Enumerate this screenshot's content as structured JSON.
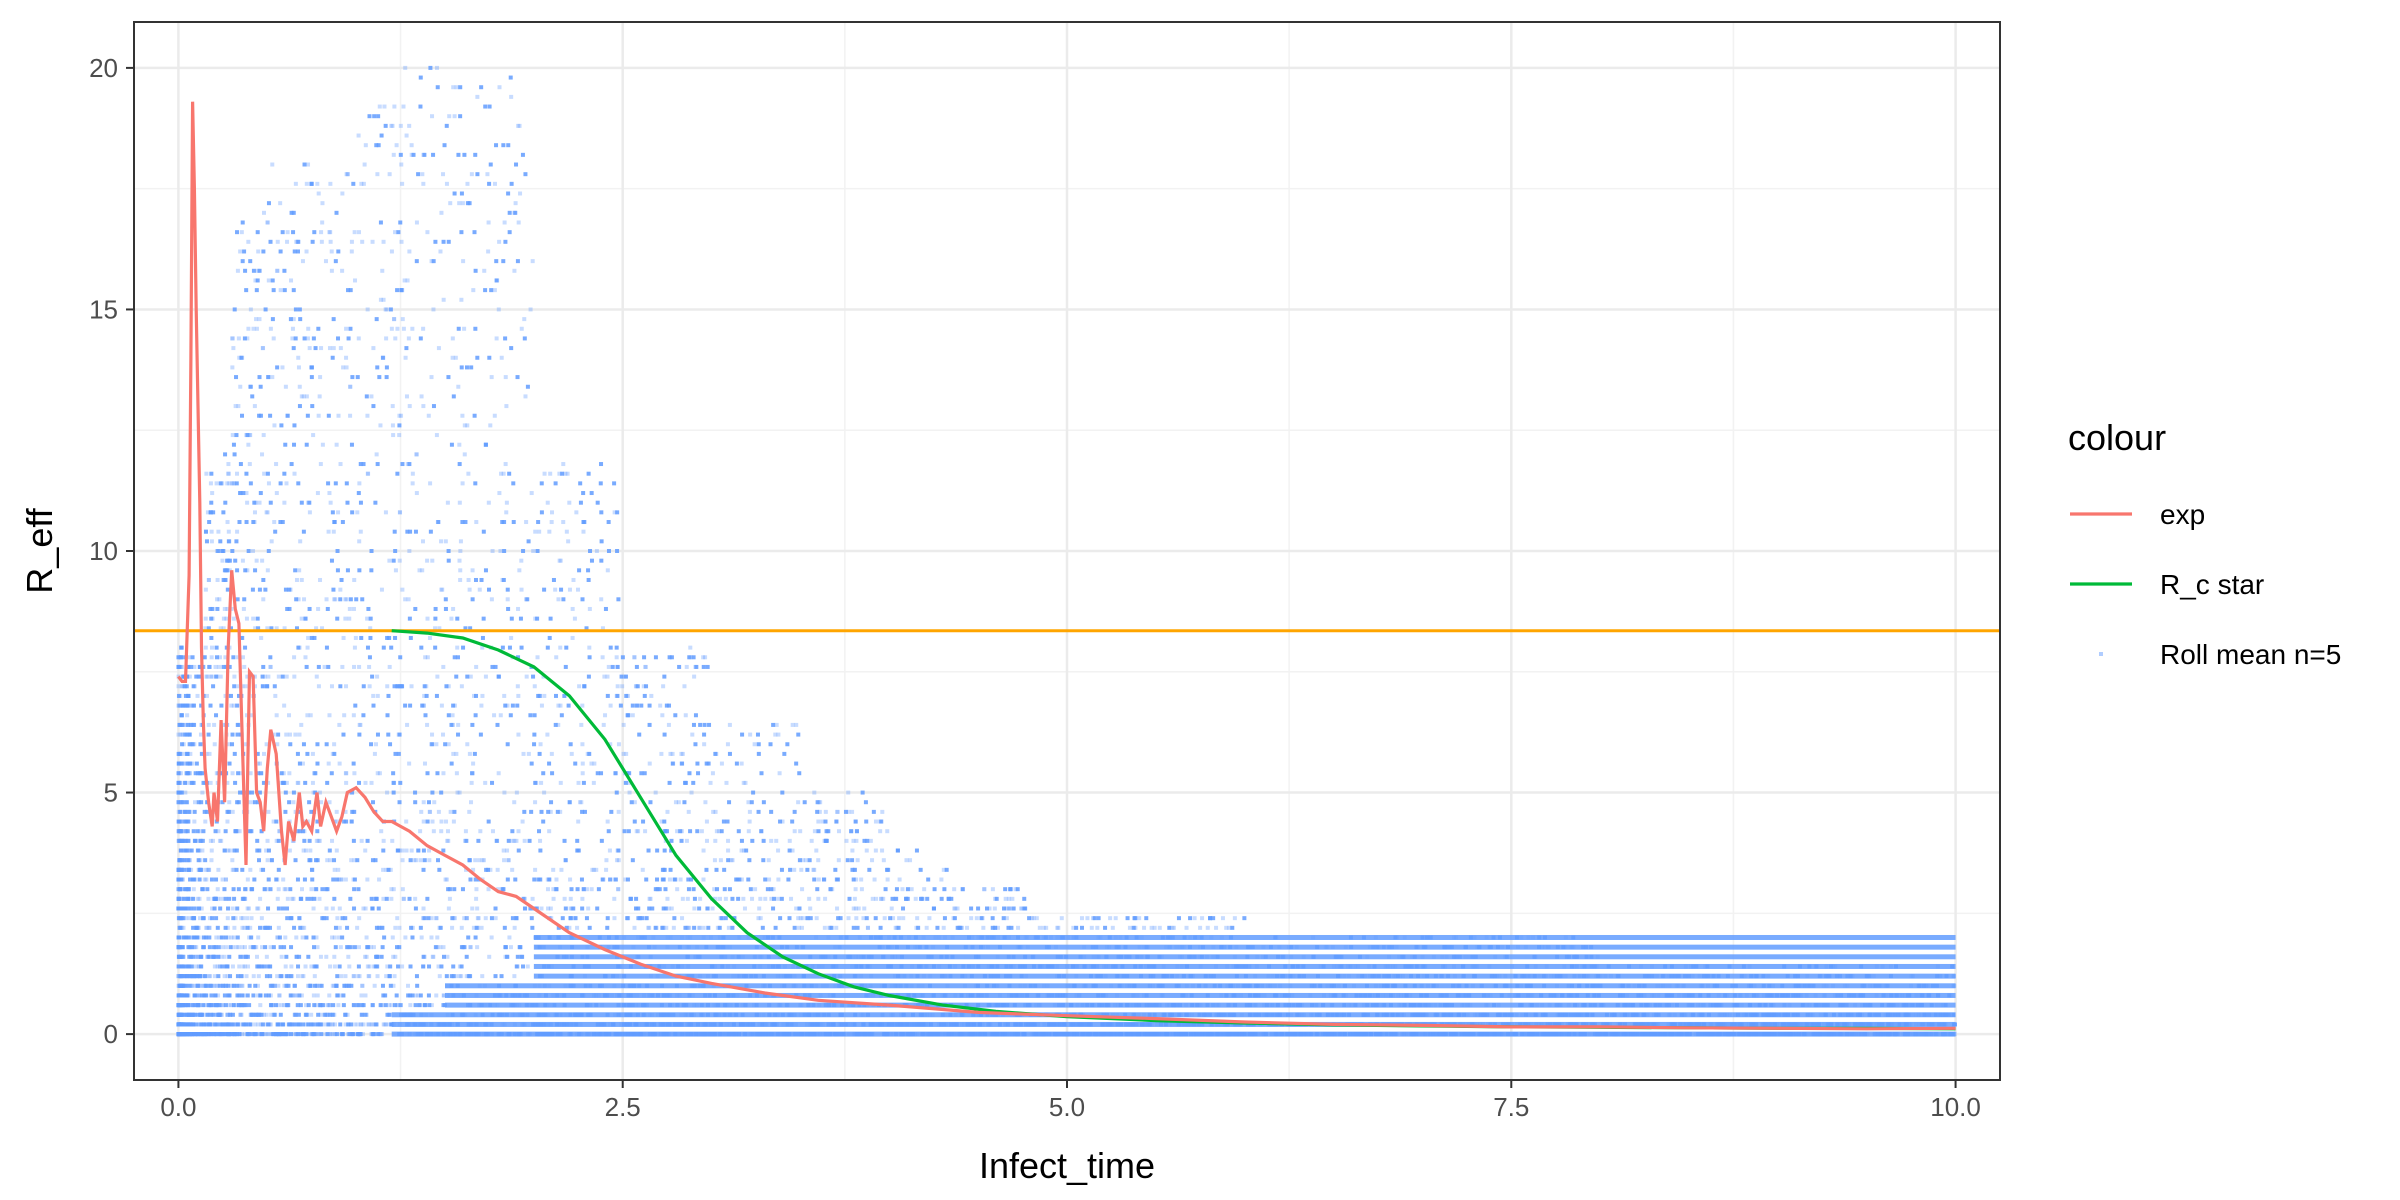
{
  "chart_data": {
    "type": "scatter",
    "title": "",
    "xlabel": "Infect_time",
    "ylabel": "R_eff",
    "xlim": [
      -0.25,
      10.25
    ],
    "ylim": [
      -0.95,
      20.95
    ],
    "x_ticks": [
      0.0,
      2.5,
      5.0,
      7.5,
      10.0
    ],
    "x_tick_labels": [
      "0.0",
      "2.5",
      "5.0",
      "7.5",
      "10.0"
    ],
    "y_ticks": [
      0,
      5,
      10,
      15,
      20
    ],
    "y_tick_labels": [
      "0",
      "5",
      "10",
      "15",
      "20"
    ],
    "grid": true,
    "theme": "bw",
    "hline": {
      "y": 8.35,
      "color": "#FFA500"
    },
    "legend": {
      "title": "colour",
      "position": "right",
      "entries": [
        {
          "label": "exp",
          "color": "#F8766D",
          "kind": "line"
        },
        {
          "label": "R_c star",
          "color": "#00BA38",
          "kind": "line"
        },
        {
          "label": "Roll mean n=5",
          "color": "#619CFF",
          "kind": "point"
        }
      ]
    },
    "series": [
      {
        "name": "exp",
        "kind": "line",
        "color": "#F8766D",
        "x": [
          0.0,
          0.02,
          0.04,
          0.06,
          0.07,
          0.08,
          0.09,
          0.1,
          0.11,
          0.12,
          0.13,
          0.14,
          0.15,
          0.17,
          0.19,
          0.2,
          0.22,
          0.24,
          0.26,
          0.28,
          0.3,
          0.32,
          0.34,
          0.36,
          0.38,
          0.4,
          0.42,
          0.44,
          0.46,
          0.48,
          0.5,
          0.52,
          0.55,
          0.58,
          0.6,
          0.62,
          0.65,
          0.68,
          0.7,
          0.72,
          0.75,
          0.78,
          0.8,
          0.83,
          0.86,
          0.89,
          0.92,
          0.95,
          1.0,
          1.05,
          1.1,
          1.15,
          1.2,
          1.25,
          1.3,
          1.4,
          1.5,
          1.6,
          1.7,
          1.8,
          1.9,
          2.0,
          2.2,
          2.4,
          2.6,
          2.8,
          3.0,
          3.3,
          3.6,
          4.0,
          4.5,
          5.0,
          5.5,
          6.0,
          6.5,
          7.0,
          7.5,
          8.0,
          8.5,
          9.0,
          9.5,
          10.0
        ],
        "y": [
          7.4,
          7.3,
          7.3,
          9.5,
          14.0,
          19.3,
          17.5,
          15.0,
          13.0,
          11.0,
          8.0,
          6.5,
          5.5,
          4.8,
          4.3,
          5.0,
          4.4,
          6.5,
          4.8,
          8.0,
          9.6,
          8.8,
          8.5,
          6.0,
          3.5,
          7.5,
          7.4,
          5.0,
          4.8,
          4.2,
          5.5,
          6.3,
          5.8,
          4.2,
          3.5,
          4.4,
          4.0,
          5.0,
          4.3,
          4.4,
          4.2,
          5.0,
          4.3,
          4.8,
          4.5,
          4.2,
          4.5,
          5.0,
          5.1,
          4.9,
          4.6,
          4.4,
          4.4,
          4.3,
          4.2,
          3.9,
          3.7,
          3.5,
          3.2,
          2.95,
          2.85,
          2.6,
          2.1,
          1.75,
          1.45,
          1.2,
          1.05,
          0.85,
          0.7,
          0.6,
          0.45,
          0.38,
          0.32,
          0.25,
          0.2,
          0.18,
          0.15,
          0.15,
          0.13,
          0.12,
          0.11,
          0.12
        ]
      },
      {
        "name": "R_c star",
        "kind": "line",
        "color": "#00BA38",
        "x": [
          1.2,
          1.4,
          1.6,
          1.8,
          2.0,
          2.2,
          2.4,
          2.6,
          2.8,
          3.0,
          3.2,
          3.4,
          3.6,
          3.8,
          4.0,
          4.3,
          4.6,
          5.0,
          5.5,
          6.0,
          6.5,
          7.0,
          7.5,
          8.0,
          8.5,
          9.0,
          9.5,
          10.0
        ],
        "y": [
          8.35,
          8.3,
          8.2,
          7.95,
          7.6,
          7.0,
          6.1,
          4.9,
          3.7,
          2.8,
          2.1,
          1.6,
          1.25,
          0.98,
          0.8,
          0.6,
          0.47,
          0.36,
          0.28,
          0.23,
          0.19,
          0.17,
          0.15,
          0.14,
          0.13,
          0.12,
          0.12,
          0.11
        ]
      },
      {
        "name": "Roll mean n=5",
        "kind": "point",
        "color": "#619CFF",
        "x_range": [
          0.0,
          10.0
        ],
        "y_range": [
          0,
          20
        ],
        "note": "dense rolling-mean points at 0.2 steps, upper envelope decays with infect time"
      }
    ]
  }
}
